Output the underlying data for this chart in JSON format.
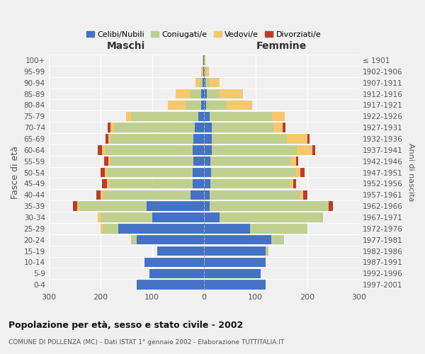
{
  "age_groups": [
    "0-4",
    "5-9",
    "10-14",
    "15-19",
    "20-24",
    "25-29",
    "30-34",
    "35-39",
    "40-44",
    "45-49",
    "50-54",
    "55-59",
    "60-64",
    "65-69",
    "70-74",
    "75-79",
    "80-84",
    "85-89",
    "90-94",
    "95-99",
    "100+"
  ],
  "birth_years": [
    "1997-2001",
    "1992-1996",
    "1987-1991",
    "1982-1986",
    "1977-1981",
    "1972-1976",
    "1967-1971",
    "1962-1966",
    "1957-1961",
    "1952-1956",
    "1947-1951",
    "1942-1946",
    "1937-1941",
    "1932-1936",
    "1927-1931",
    "1922-1926",
    "1917-1921",
    "1912-1916",
    "1907-1911",
    "1902-1906",
    "≤ 1901"
  ],
  "colors": {
    "celibe": "#4472C4",
    "coniugato": "#BFCF8F",
    "vedovo": "#F5C86E",
    "divorziato": "#C0392B"
  },
  "maschi": {
    "celibe": [
      130,
      105,
      115,
      90,
      130,
      165,
      100,
      110,
      25,
      22,
      22,
      20,
      22,
      20,
      18,
      10,
      5,
      5,
      2,
      1,
      1
    ],
    "coniugato": [
      0,
      0,
      0,
      0,
      10,
      30,
      100,
      130,
      170,
      160,
      165,
      160,
      170,
      160,
      155,
      130,
      30,
      20,
      6,
      2,
      0
    ],
    "vedovo": [
      0,
      0,
      0,
      0,
      0,
      5,
      5,
      5,
      5,
      5,
      5,
      5,
      5,
      5,
      8,
      10,
      35,
      30,
      8,
      2,
      1
    ],
    "divorziato": [
      0,
      0,
      0,
      0,
      0,
      0,
      0,
      8,
      8,
      10,
      8,
      8,
      8,
      5,
      5,
      0,
      0,
      0,
      0,
      0,
      0
    ]
  },
  "femmine": {
    "nubile": [
      120,
      110,
      120,
      120,
      130,
      90,
      30,
      12,
      12,
      13,
      14,
      13,
      15,
      15,
      15,
      12,
      4,
      6,
      3,
      2,
      1
    ],
    "coniugata": [
      0,
      0,
      0,
      5,
      25,
      110,
      200,
      230,
      175,
      155,
      165,
      155,
      165,
      145,
      120,
      120,
      40,
      25,
      8,
      3,
      0
    ],
    "vedova": [
      0,
      0,
      0,
      0,
      0,
      0,
      0,
      0,
      5,
      5,
      8,
      10,
      30,
      40,
      18,
      25,
      50,
      45,
      20,
      5,
      2
    ],
    "divorziata": [
      0,
      0,
      0,
      0,
      0,
      0,
      0,
      8,
      8,
      5,
      8,
      5,
      5,
      5,
      5,
      0,
      0,
      0,
      0,
      0,
      0
    ]
  },
  "xlim": 300,
  "title": "Popolazione per età, sesso e stato civile - 2002",
  "subtitle": "COMUNE DI POLLENZA (MC) - Dati ISTAT 1° gennaio 2002 - Elaborazione TUTTITALIA.IT",
  "ylabel": "Fasce di età",
  "ylabel2": "Anni di nascita",
  "xlabel_maschi": "Maschi",
  "xlabel_femmine": "Femmine",
  "bg_color": "#F0F0F0",
  "grid_color": "#FFFFFF",
  "bar_height": 0.85
}
